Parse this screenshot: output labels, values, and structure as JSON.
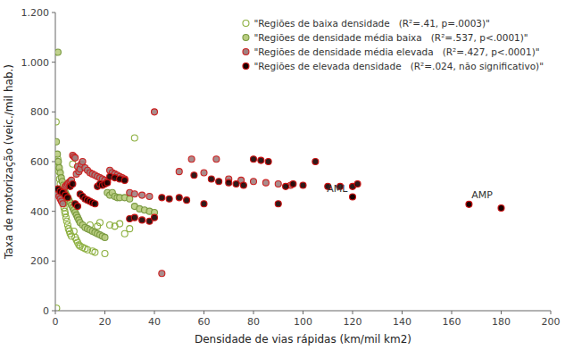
{
  "chart_data": {
    "type": "scatter",
    "xlabel": "Densidade de vias rápidas (km/mil km2)",
    "ylabel": "Taxa de motorização (veic./mil hab.)",
    "xlim": [
      0,
      200
    ],
    "ylim": [
      0,
      1200
    ],
    "xticks": [
      0,
      20,
      40,
      60,
      80,
      100,
      120,
      140,
      160,
      180,
      200
    ],
    "yticks": [
      0,
      200,
      400,
      600,
      800,
      {
        "value": 1000,
        "label": "1.000"
      },
      {
        "value": 1200,
        "label": "1.200"
      }
    ],
    "grid": false,
    "legend": "upper right",
    "series": [
      {
        "name": "\"Regiões de baixa densidade   (R²=.41, p=.0003)\"",
        "marker": "open-circle",
        "edge_color": "#8db040",
        "x": [
          0.3,
          0.5,
          0.7,
          1.0,
          1.2,
          1.5,
          1.7,
          2.0,
          2.2,
          2.5,
          2.7,
          3.0,
          3.3,
          3.5,
          3.8,
          4.0,
          4.3,
          4.6,
          5.0,
          5.3,
          5.7,
          6.0,
          6.5,
          7.0,
          7.5,
          8.0,
          8.5,
          9.0,
          9.5,
          10.0,
          11.0,
          12.0,
          13.0,
          14.0,
          15.0,
          16.0,
          17.0,
          18.0,
          20.0,
          22.0,
          24.0,
          26.0,
          28.0,
          30.0,
          32.0
        ],
        "values": [
          760,
          10,
          600,
          610,
          580,
          560,
          530,
          510,
          490,
          475,
          460,
          445,
          430,
          415,
          400,
          390,
          375,
          360,
          345,
          330,
          320,
          310,
          300,
          590,
          320,
          295,
          285,
          275,
          265,
          260,
          255,
          250,
          245,
          345,
          240,
          235,
          340,
          355,
          230,
          345,
          340,
          350,
          310,
          330,
          695
        ]
      },
      {
        "name": "\"Regiões de densidade média baixa   (R²=.537, p<.0001)\"",
        "marker": "circle",
        "color": "#b8cc80",
        "edge_color": "#7a9a40",
        "x": [
          0.4,
          0.8,
          1.2,
          1.6,
          2.0,
          2.4,
          2.8,
          3.2,
          3.6,
          4.0,
          4.5,
          5.0,
          5.5,
          6.0,
          6.5,
          7.0,
          7.5,
          8.0,
          8.5,
          9.0,
          9.5,
          10.0,
          11.0,
          12.0,
          13.0,
          14.0,
          15.0,
          16.0,
          17.0,
          18.0,
          19.0,
          20.0,
          21.0,
          22.0,
          23.0,
          24.0,
          25.0,
          26.0,
          28.0,
          30.0,
          32.0,
          34.0,
          36.0,
          38.0,
          40.0,
          1.05
        ],
        "values": [
          680,
          630,
          600,
          575,
          555,
          535,
          520,
          505,
          490,
          475,
          465,
          455,
          445,
          435,
          425,
          415,
          405,
          395,
          385,
          375,
          365,
          355,
          345,
          335,
          330,
          325,
          320,
          315,
          310,
          305,
          300,
          295,
          475,
          465,
          475,
          460,
          455,
          455,
          455,
          450,
          420,
          410,
          405,
          400,
          395,
          1040
        ]
      },
      {
        "name": "\"Regiões de densidade média elevada   (R²=.427, p<.0001)\"",
        "marker": "circle",
        "color": "#a08080",
        "edge_color": "#cc2020",
        "x": [
          0.5,
          1.0,
          1.5,
          2.0,
          2.5,
          3.0,
          3.5,
          4.0,
          4.5,
          5.0,
          5.5,
          6.0,
          6.5,
          7.0,
          7.5,
          8.0,
          8.5,
          9.0,
          9.5,
          10.0,
          10.5,
          11.0,
          12.0,
          13.0,
          14.0,
          15.0,
          16.0,
          17.0,
          18.0,
          19.0,
          20.0,
          21.0,
          22.0,
          23.0,
          24.0,
          25.0,
          26.0,
          27.0,
          28.0,
          30.0,
          32.0,
          35.0,
          38.0,
          40.0,
          43.0,
          50.0,
          55.0,
          60.0,
          65.0,
          70.0,
          75.0,
          80.0,
          85.0,
          90.0,
          95.0
        ],
        "values": [
          480,
          470,
          460,
          450,
          440,
          430,
          475,
          500,
          505,
          510,
          515,
          520,
          525,
          625,
          620,
          615,
          550,
          580,
          560,
          570,
          590,
          600,
          575,
          565,
          555,
          550,
          545,
          540,
          535,
          530,
          525,
          520,
          565,
          555,
          550,
          545,
          540,
          535,
          530,
          475,
          470,
          465,
          460,
          800,
          150,
          560,
          610,
          555,
          610,
          530,
          525,
          520,
          515,
          510,
          505
        ]
      },
      {
        "name": "\"Regiões de elevada densidade   (R²=.024, não significativo)\"",
        "marker": "circle",
        "color": "#1a0000",
        "edge_color": "#cc1010",
        "x": [
          1.0,
          2.0,
          3.0,
          4.0,
          5.0,
          6.0,
          7.0,
          8.0,
          9.0,
          10.0,
          11.0,
          12.0,
          13.0,
          14.0,
          15.0,
          16.0,
          17.0,
          18.0,
          19.0,
          20.0,
          21.0,
          22.0,
          24.0,
          26.0,
          28.0,
          30.0,
          32.0,
          35.0,
          38.0,
          40.0,
          43.0,
          46.0,
          50.0,
          53.0,
          56.0,
          60.0,
          63.0,
          66.0,
          70.0,
          73.0,
          76.0,
          80.0,
          83.0,
          86.0,
          90.0,
          93.0,
          96.0,
          100.0,
          105.0,
          110.0,
          115.0,
          120.0,
          122.0
        ],
        "values": [
          490,
          480,
          475,
          465,
          455,
          500,
          510,
          430,
          420,
          470,
          460,
          450,
          445,
          440,
          435,
          430,
          500,
          510,
          505,
          510,
          515,
          540,
          535,
          530,
          525,
          370,
          375,
          365,
          360,
          375,
          455,
          450,
          455,
          445,
          545,
          430,
          530,
          520,
          515,
          510,
          505,
          610,
          605,
          600,
          430,
          500,
          510,
          505,
          600,
          500,
          500,
          500,
          510
        ]
      }
    ],
    "annotations": [
      {
        "text": "AML",
        "x": 118,
        "y": 475,
        "align": "right",
        "marker": "circle",
        "color": "#1a0000",
        "edge_color": "#cc1010",
        "points_x": [
          120.0
        ],
        "points_y": [
          458
        ]
      },
      {
        "text": "AMP",
        "x": 168,
        "y": 450,
        "align": "left",
        "marker": "circle",
        "color": "#1a0000",
        "edge_color": "#cc1010",
        "points_x": [
          167.0,
          180.0
        ],
        "points_y": [
          428,
          413
        ]
      }
    ]
  }
}
